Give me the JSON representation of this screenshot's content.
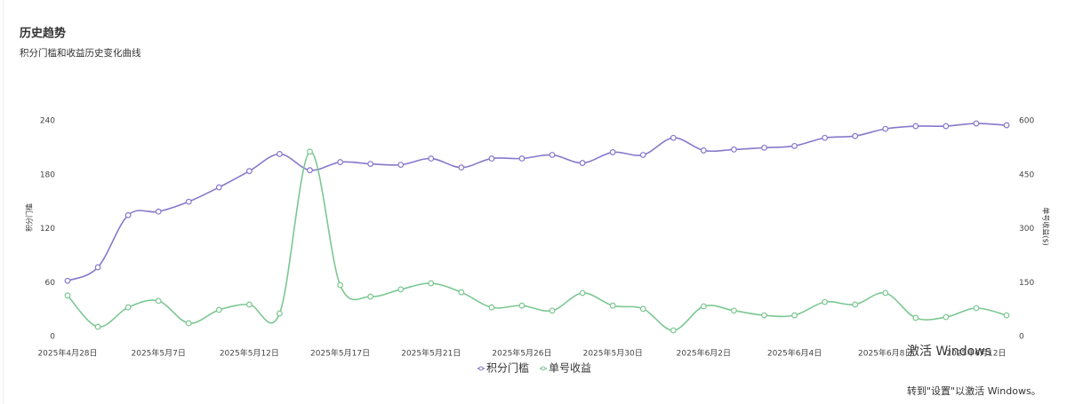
{
  "header": {
    "title": "历史趋势",
    "subtitle": "积分门槛和收益历史变化曲线"
  },
  "chart_data": {
    "type": "line",
    "categories": [
      "2025年4月28日",
      null,
      null,
      "2025年5月7日",
      null,
      null,
      "2025年5月12日",
      null,
      null,
      "2025年5月17日",
      null,
      null,
      "2025年5月21日",
      null,
      null,
      "2025年5月26日",
      null,
      null,
      "2025年5月30日",
      null,
      null,
      "2025年6月2日",
      null,
      null,
      "2025年6月4日",
      null,
      null,
      "2025年6月8日",
      null,
      null,
      "2025年6月12日",
      null
    ],
    "series": [
      {
        "name": "积分门槛",
        "color": "#8877cc",
        "values": [
          62,
          77,
          135,
          139,
          150,
          166,
          184,
          203,
          185,
          194,
          192,
          191,
          198,
          188,
          198,
          198,
          202,
          193,
          205,
          202,
          221,
          207,
          208,
          210,
          212,
          221,
          223,
          231,
          234,
          234,
          237,
          235
        ]
      },
      {
        "name": "单号收益",
        "color": "#7cc792",
        "axis": "y2",
        "values": [
          114,
          27,
          81,
          99,
          37,
          74,
          89,
          64,
          514,
          143,
          111,
          131,
          148,
          123,
          81,
          86,
          72,
          121,
          86,
          77,
          17,
          84,
          72,
          59,
          59,
          96,
          89,
          121,
          52,
          54,
          79,
          59
        ]
      }
    ],
    "ylabel": "积分门槛",
    "y2label": "单号收益($)",
    "ylim": [
      0,
      240
    ],
    "yticks": [
      0,
      60,
      120,
      180,
      240
    ],
    "y2lim": [
      0,
      600
    ],
    "y2ticks": [
      0,
      150,
      300,
      450,
      600
    ],
    "grid": false,
    "legend": "bottom"
  },
  "watermark": {
    "line1": "激活 Windows",
    "line2": "转到\"设置\"以激活 Windows。"
  }
}
